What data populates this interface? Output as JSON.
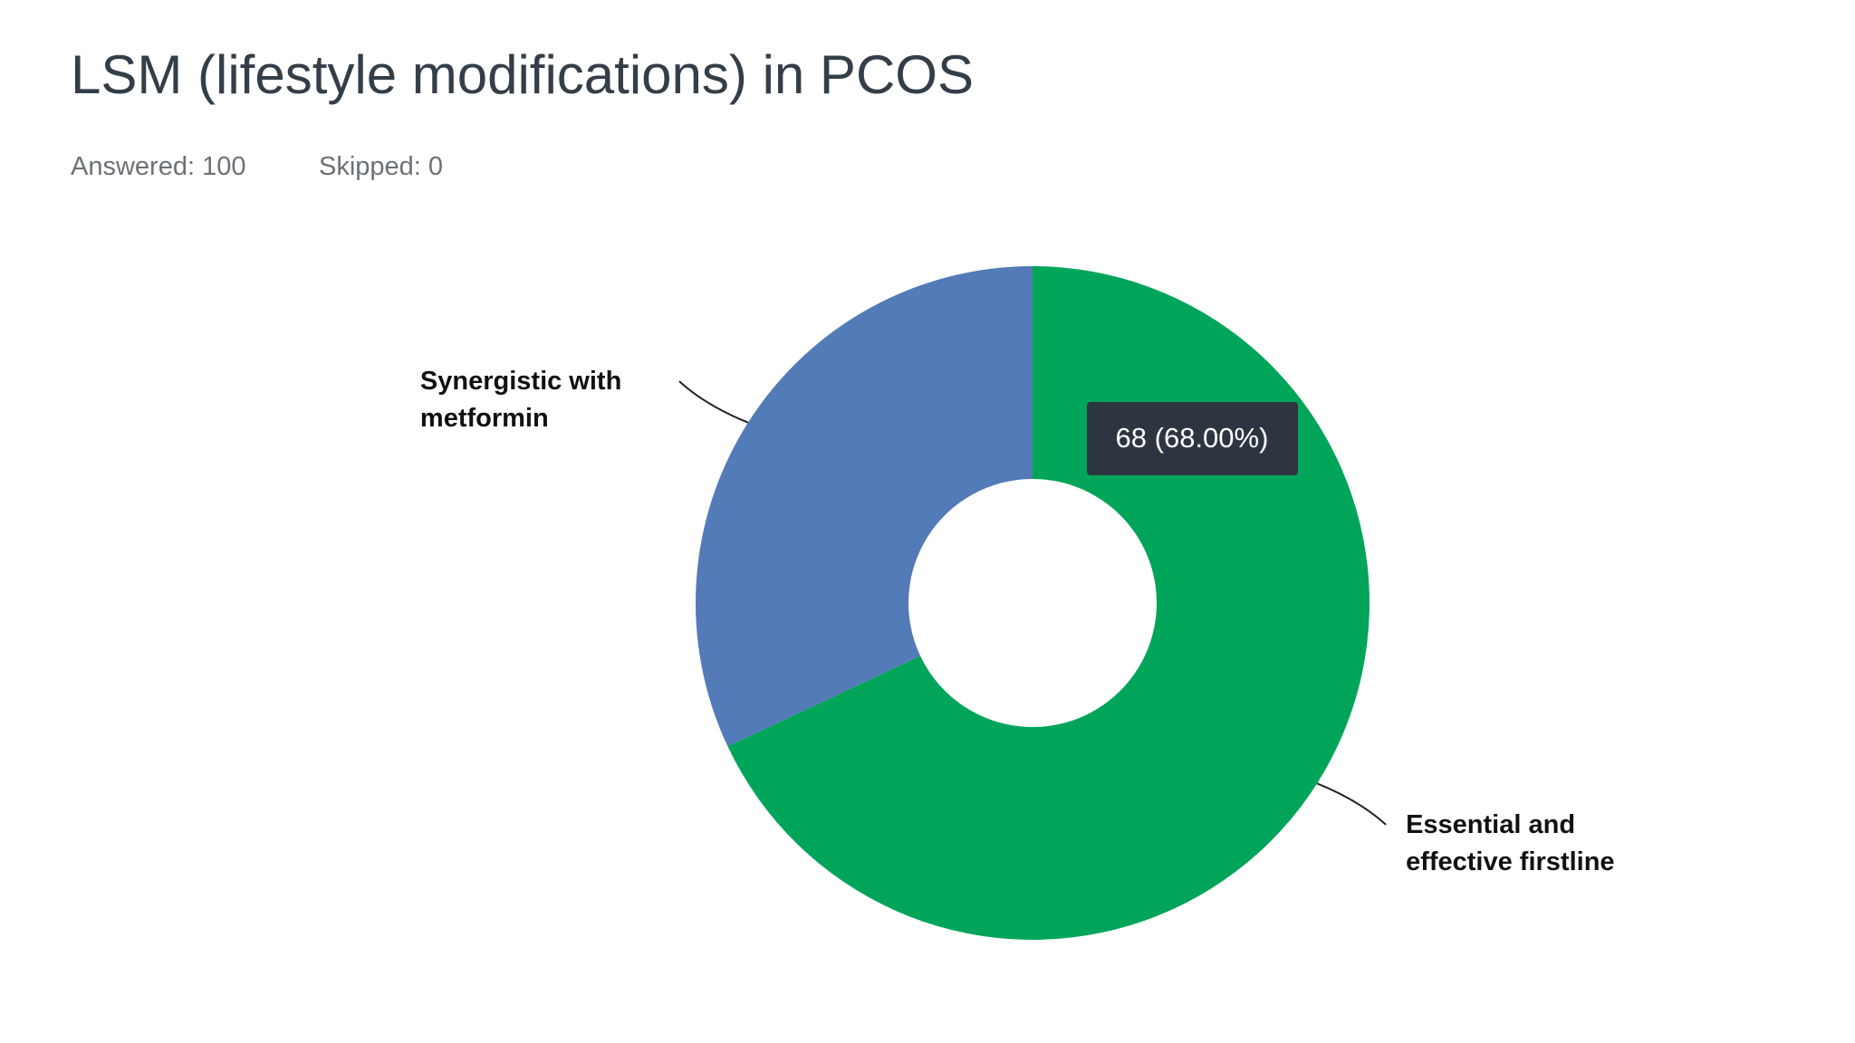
{
  "chart_data": {
    "type": "donut",
    "title": "LSM (lifestyle modifications) in PCOS",
    "answered": "Answered: 100",
    "skipped": "Skipped: 0",
    "categories": [
      "Essential and effective firstline",
      "Synergistic with metformin"
    ],
    "values": [
      68,
      32
    ],
    "value_labels": [
      "68 (68.00%)",
      null
    ],
    "colors": [
      "#00a55a",
      "#527bb7"
    ]
  }
}
